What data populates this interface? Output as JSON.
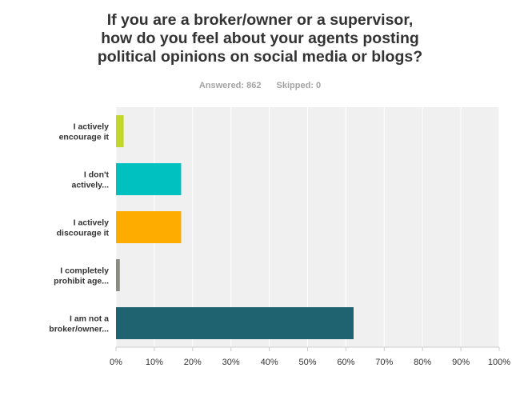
{
  "title_lines": [
    "If you are a broker/owner or a supervisor,",
    "how do you feel about your agents posting",
    "political opinions on social media or blogs?"
  ],
  "meta": {
    "answered": "Answered: 862",
    "skipped": "Skipped: 0"
  },
  "chart_data": {
    "type": "bar",
    "orientation": "horizontal",
    "categories": [
      [
        "I actively",
        "encourage it"
      ],
      [
        "I don't",
        "actively..."
      ],
      [
        "I actively",
        "discourage it"
      ],
      [
        "I completely",
        "prohibit age..."
      ],
      [
        "I am not a",
        "broker/owner..."
      ]
    ],
    "values": [
      2,
      17,
      17,
      1,
      62
    ],
    "colors": [
      "#c2d72a",
      "#00c0c0",
      "#ffac00",
      "#8a8c7e",
      "#1f6370"
    ],
    "xlim": [
      0,
      100
    ],
    "xticks": [
      "0%",
      "10%",
      "20%",
      "30%",
      "40%",
      "50%",
      "60%",
      "70%",
      "80%",
      "90%",
      "100%"
    ],
    "grid": true,
    "plot_background": "#f0f0f0"
  }
}
